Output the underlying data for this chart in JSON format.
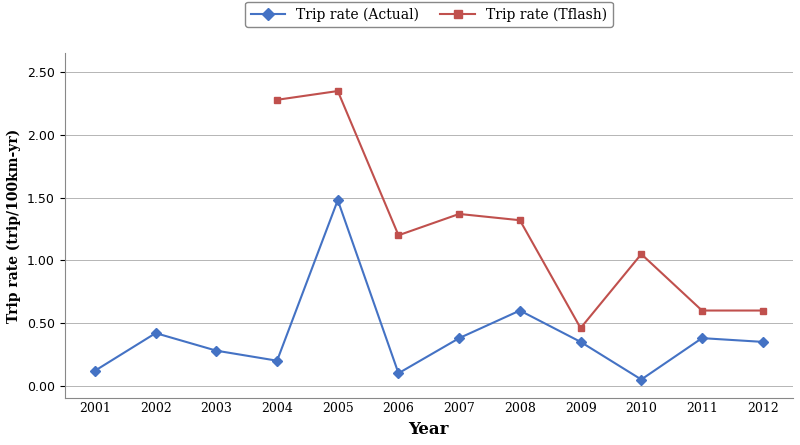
{
  "years": [
    2001,
    2002,
    2003,
    2004,
    2005,
    2006,
    2007,
    2008,
    2009,
    2010,
    2011,
    2012
  ],
  "actual": [
    0.12,
    0.42,
    0.28,
    0.2,
    1.48,
    0.1,
    0.38,
    0.6,
    0.35,
    0.05,
    0.38,
    0.35
  ],
  "tflash_years": [
    2004,
    2005,
    2006,
    2007,
    2008,
    2009,
    2010,
    2011,
    2012
  ],
  "tflash": [
    2.28,
    2.35,
    1.2,
    1.37,
    1.32,
    0.46,
    1.05,
    0.6,
    0.6
  ],
  "actual_color": "#4472C4",
  "tflash_color": "#C0504D",
  "ylabel": "Trip rate (trip/100km-yr)",
  "xlabel": "Year",
  "ylim": [
    -0.1,
    2.65
  ],
  "yticks": [
    0.0,
    0.5,
    1.0,
    1.5,
    2.0,
    2.5
  ],
  "legend_actual": "Trip rate (Actual)",
  "legend_tflash": "Trip rate (Tflash)",
  "fig_facecolor": "#ffffff",
  "ax_facecolor": "#ffffff"
}
